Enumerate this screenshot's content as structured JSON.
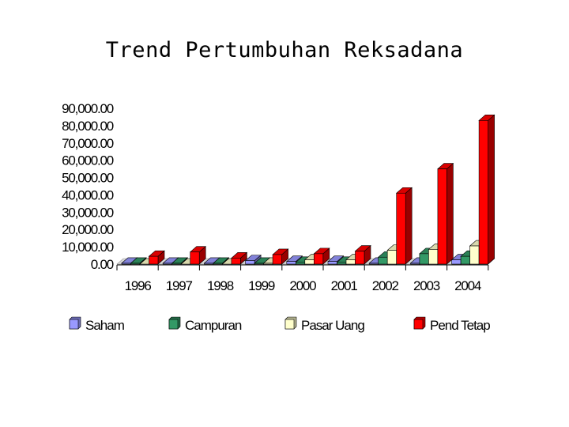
{
  "chart_data": {
    "type": "bar",
    "title": "Trend Pertumbuhan Reksadana",
    "categories": [
      "1996",
      "1997",
      "1998",
      "1999",
      "2000",
      "2001",
      "2002",
      "2003",
      "2004"
    ],
    "series": [
      {
        "name": "Saham",
        "color": "#9999ff",
        "values": [
          500,
          500,
          500,
          2000,
          1500,
          1500,
          500,
          500,
          2500
        ]
      },
      {
        "name": "Campuran",
        "color": "#339966",
        "values": [
          500,
          500,
          500,
          500,
          1000,
          1000,
          4000,
          6000,
          4500
        ]
      },
      {
        "name": "Pasar Uang",
        "color": "#ffffcc",
        "values": [
          0,
          0,
          0,
          500,
          2500,
          2500,
          8000,
          8500,
          10500
        ]
      },
      {
        "name": "Pend Tetap",
        "color": "#ff0000",
        "values": [
          4500,
          7000,
          3500,
          5500,
          6000,
          7500,
          41000,
          55000,
          83000
        ]
      }
    ],
    "ylim": [
      0,
      90000
    ],
    "yticks": [
      "0.00",
      "10,000.00",
      "20,000.00",
      "30,000.00",
      "40,000.00",
      "50,000.00",
      "60,000.00",
      "70,000.00",
      "80,000.00",
      "90,000.00"
    ],
    "xlabel": "",
    "ylabel": "",
    "legend_position": "bottom",
    "three_d": true,
    "grid": false
  }
}
